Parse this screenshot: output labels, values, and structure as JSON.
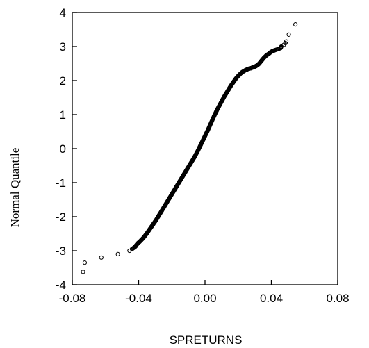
{
  "chart_data": {
    "type": "scatter",
    "title": "",
    "xlabel": "SPRETURNS",
    "ylabel": "Normal Quantile",
    "xlim": [
      -0.08,
      0.08
    ],
    "ylim": [
      -4,
      4
    ],
    "xticks": [
      -0.08,
      -0.04,
      0.0,
      0.04,
      0.08
    ],
    "xtick_labels": [
      "-0.08",
      "-0.04",
      "0.00",
      "0.04",
      "0.08"
    ],
    "yticks": [
      -4,
      -3,
      -2,
      -1,
      0,
      1,
      2,
      3,
      4
    ],
    "ytick_labels": [
      "-4",
      "-3",
      "-2",
      "-1",
      "0",
      "1",
      "2",
      "3",
      "4"
    ],
    "grid": false,
    "marker": "open-circle",
    "series": [
      {
        "points": [
          [
            -0.0735,
            -3.62
          ],
          [
            -0.0725,
            -3.35
          ],
          [
            -0.0625,
            -3.2
          ],
          [
            -0.0525,
            -3.1
          ],
          [
            -0.0455,
            -3.0
          ],
          [
            -0.044,
            -2.95
          ],
          [
            -0.042,
            -2.88
          ],
          [
            -0.0415,
            -2.84
          ],
          [
            -0.0405,
            -2.78
          ],
          [
            -0.0395,
            -2.74
          ],
          [
            -0.0385,
            -2.69
          ],
          [
            -0.0375,
            -2.64
          ],
          [
            -0.0365,
            -2.58
          ],
          [
            -0.0355,
            -2.52
          ],
          [
            -0.0345,
            -2.45
          ],
          [
            -0.0335,
            -2.38
          ],
          [
            -0.0325,
            -2.31
          ],
          [
            -0.0315,
            -2.24
          ],
          [
            -0.0305,
            -2.17
          ],
          [
            -0.0295,
            -2.1
          ],
          [
            -0.0285,
            -2.02
          ],
          [
            -0.0275,
            -1.94
          ],
          [
            -0.0265,
            -1.86
          ],
          [
            -0.0255,
            -1.78
          ],
          [
            -0.0245,
            -1.7
          ],
          [
            -0.0235,
            -1.62
          ],
          [
            -0.0225,
            -1.54
          ],
          [
            -0.0215,
            -1.46
          ],
          [
            -0.0205,
            -1.38
          ],
          [
            -0.0195,
            -1.3
          ],
          [
            -0.0185,
            -1.22
          ],
          [
            -0.0175,
            -1.14
          ],
          [
            -0.0165,
            -1.06
          ],
          [
            -0.0155,
            -0.98
          ],
          [
            -0.0145,
            -0.9
          ],
          [
            -0.0135,
            -0.82
          ],
          [
            -0.0125,
            -0.74
          ],
          [
            -0.0115,
            -0.66
          ],
          [
            -0.0105,
            -0.58
          ],
          [
            -0.0095,
            -0.5
          ],
          [
            -0.0085,
            -0.42
          ],
          [
            -0.0075,
            -0.34
          ],
          [
            -0.0065,
            -0.26
          ],
          [
            -0.0055,
            -0.17
          ],
          [
            -0.0045,
            -0.08
          ],
          [
            -0.0035,
            0.02
          ],
          [
            -0.0025,
            0.12
          ],
          [
            -0.0015,
            0.22
          ],
          [
            -0.0005,
            0.32
          ],
          [
            0.0005,
            0.42
          ],
          [
            0.0015,
            0.52
          ],
          [
            0.0025,
            0.63
          ],
          [
            0.0035,
            0.74
          ],
          [
            0.0045,
            0.85
          ],
          [
            0.0055,
            0.96
          ],
          [
            0.0065,
            1.06
          ],
          [
            0.0075,
            1.16
          ],
          [
            0.0085,
            1.25
          ],
          [
            0.0095,
            1.34
          ],
          [
            0.0105,
            1.43
          ],
          [
            0.0115,
            1.52
          ],
          [
            0.0125,
            1.6
          ],
          [
            0.0135,
            1.68
          ],
          [
            0.0145,
            1.76
          ],
          [
            0.0155,
            1.84
          ],
          [
            0.0165,
            1.91
          ],
          [
            0.0175,
            1.98
          ],
          [
            0.0185,
            2.05
          ],
          [
            0.0195,
            2.11
          ],
          [
            0.0205,
            2.16
          ],
          [
            0.0215,
            2.21
          ],
          [
            0.0225,
            2.25
          ],
          [
            0.0235,
            2.28
          ],
          [
            0.0245,
            2.31
          ],
          [
            0.0255,
            2.33
          ],
          [
            0.0265,
            2.35
          ],
          [
            0.0275,
            2.36
          ],
          [
            0.0285,
            2.38
          ],
          [
            0.0295,
            2.4
          ],
          [
            0.0305,
            2.42
          ],
          [
            0.0315,
            2.45
          ],
          [
            0.0325,
            2.49
          ],
          [
            0.0335,
            2.55
          ],
          [
            0.0345,
            2.61
          ],
          [
            0.0355,
            2.67
          ],
          [
            0.037,
            2.74
          ],
          [
            0.0385,
            2.79
          ],
          [
            0.0395,
            2.83
          ],
          [
            0.0405,
            2.86
          ],
          [
            0.042,
            2.89
          ],
          [
            0.0455,
            2.95
          ],
          [
            0.046,
            3.0
          ],
          [
            0.0475,
            3.05
          ],
          [
            0.0485,
            3.1
          ],
          [
            0.049,
            3.15
          ],
          [
            0.0505,
            3.35
          ],
          [
            0.0545,
            3.65
          ]
        ]
      }
    ]
  }
}
